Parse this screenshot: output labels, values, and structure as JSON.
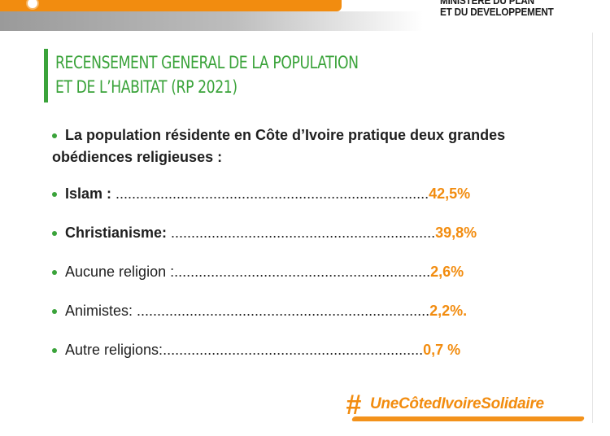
{
  "header": {
    "ministry_line1": "MINISTERE DU PLAN",
    "ministry_line2": "ET DU DEVELOPPEMENT"
  },
  "title": {
    "line1": "RECENSEMENT GENERAL DE LA POPULATION",
    "line2": "ET DE L’HABITAT (RP 2021)"
  },
  "intro": "La population résidente en Côte d’Ivoire pratique deux grandes obédiences religieuses :",
  "stats": [
    {
      "label": "Islam  : ",
      "dots": ".............................................................................",
      "value": "42,5%"
    },
    {
      "label": "Christianisme: ",
      "dots": ".................................................................",
      "value": "39,8%"
    },
    {
      "label": "Aucune religion :",
      "dots": "...............................................................",
      "value": "2,6%"
    },
    {
      "label": "Animistes: ",
      "dots": "........................................................................",
      "value": "2,2%."
    },
    {
      "label": "Autre religions:",
      "dots": "................................................................",
      "value": "0,7 %"
    }
  ],
  "hashtag": "UneCôtedIvoireSolidaire",
  "colors": {
    "orange": "#f28c0f",
    "green": "#3aa33a"
  }
}
